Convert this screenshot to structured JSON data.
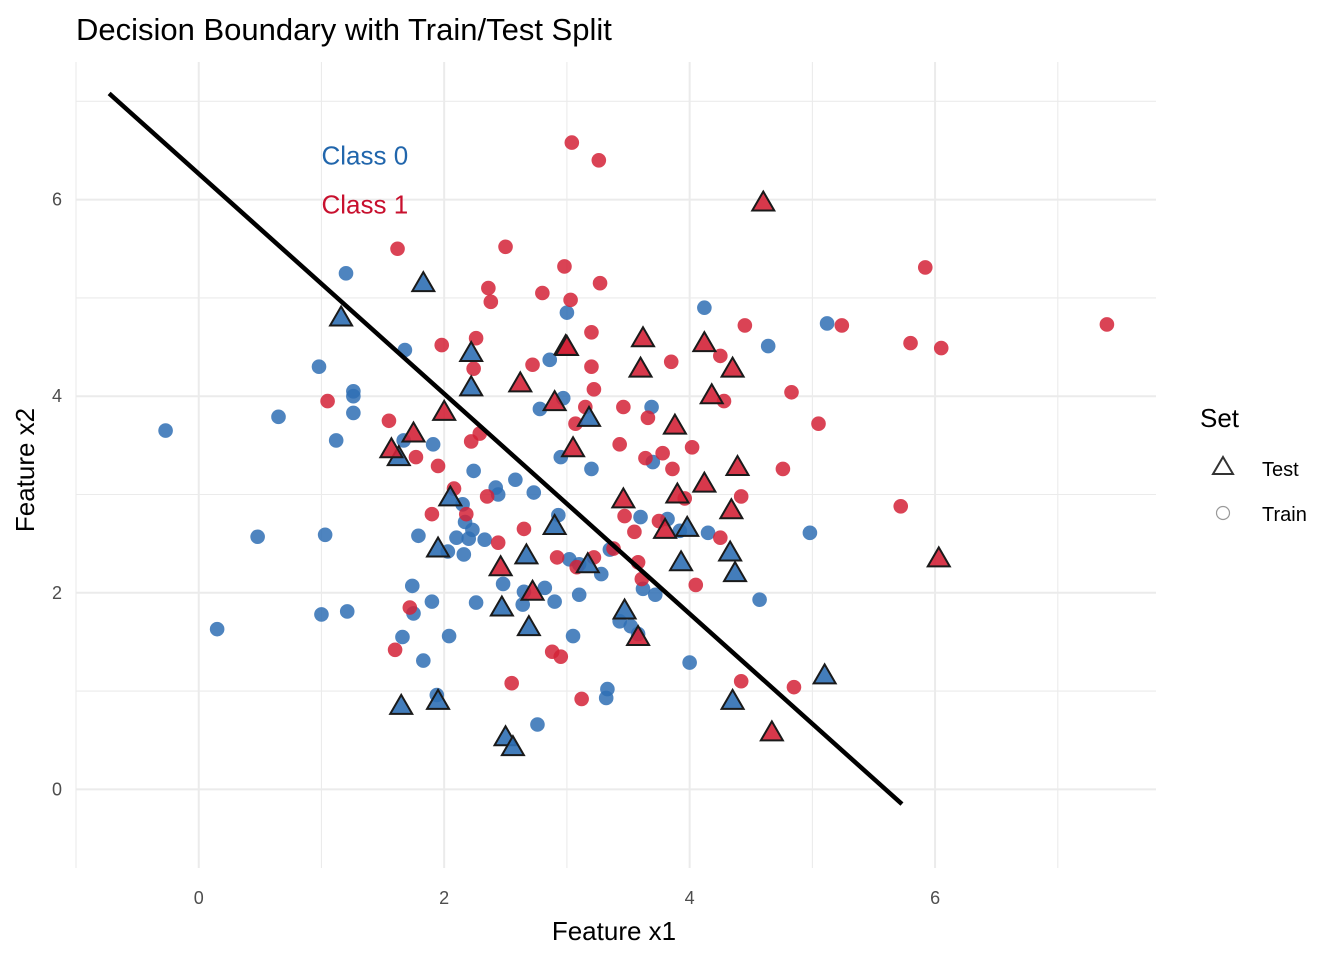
{
  "chart_data": {
    "type": "scatter",
    "title": "Decision Boundary with Train/Test Split",
    "xlabel": "Feature x1",
    "ylabel": "Feature x2",
    "xlim": [
      -1.0,
      7.8
    ],
    "ylim": [
      -0.8,
      7.4
    ],
    "x_ticks": [
      0,
      2,
      4,
      6
    ],
    "y_ticks": [
      0,
      2,
      4,
      6
    ],
    "grid": true,
    "colors": {
      "class0": "#2f6fb4",
      "class1": "#d32237",
      "boundary": "#000000"
    },
    "annotations": [
      {
        "text": "Class 0",
        "x": 1.0,
        "y": 6.45,
        "color": "#2166ac"
      },
      {
        "text": "Class 1",
        "x": 1.0,
        "y": 5.95,
        "color": "#c8102e"
      }
    ],
    "boundary_line": {
      "x": [
        -0.73,
        5.73
      ],
      "y": [
        7.08,
        -0.15
      ]
    },
    "legend": {
      "title": "Set",
      "position": "right",
      "entries": [
        {
          "label": "Test",
          "shape": "triangle"
        },
        {
          "label": "Train",
          "shape": "circle"
        }
      ]
    },
    "series": [
      {
        "name": "Train",
        "shape": "circle",
        "class0": [
          [
            -0.27,
            3.65
          ],
          [
            0.15,
            1.63
          ],
          [
            0.48,
            2.57
          ],
          [
            0.65,
            3.79
          ],
          [
            0.98,
            4.3
          ],
          [
            1.0,
            1.78
          ],
          [
            1.03,
            2.59
          ],
          [
            1.12,
            3.55
          ],
          [
            1.2,
            5.25
          ],
          [
            1.21,
            1.81
          ],
          [
            1.26,
            4.05
          ],
          [
            1.26,
            4.0
          ],
          [
            1.26,
            3.83
          ],
          [
            1.66,
            1.55
          ],
          [
            1.68,
            4.47
          ],
          [
            1.67,
            3.55
          ],
          [
            1.74,
            2.07
          ],
          [
            1.75,
            1.79
          ],
          [
            1.79,
            2.58
          ],
          [
            1.83,
            1.31
          ],
          [
            1.9,
            1.91
          ],
          [
            1.91,
            3.51
          ],
          [
            1.94,
            0.96
          ],
          [
            2.03,
            2.42
          ],
          [
            2.04,
            1.56
          ],
          [
            2.1,
            2.56
          ],
          [
            2.15,
            2.9
          ],
          [
            2.16,
            2.39
          ],
          [
            2.17,
            2.72
          ],
          [
            2.2,
            2.55
          ],
          [
            2.23,
            2.64
          ],
          [
            2.24,
            3.24
          ],
          [
            2.26,
            1.9
          ],
          [
            2.33,
            2.54
          ],
          [
            2.42,
            3.07
          ],
          [
            2.44,
            3.0
          ],
          [
            2.48,
            2.09
          ],
          [
            2.58,
            3.15
          ],
          [
            2.64,
            1.88
          ],
          [
            2.65,
            2.01
          ],
          [
            2.73,
            3.02
          ],
          [
            2.76,
            0.66
          ],
          [
            2.78,
            3.87
          ],
          [
            2.82,
            2.05
          ],
          [
            2.86,
            4.37
          ],
          [
            2.9,
            1.91
          ],
          [
            2.93,
            2.79
          ],
          [
            2.95,
            3.38
          ],
          [
            2.97,
            3.98
          ],
          [
            3.0,
            4.85
          ],
          [
            3.02,
            2.34
          ],
          [
            3.05,
            1.56
          ],
          [
            3.1,
            1.98
          ],
          [
            3.1,
            2.29
          ],
          [
            3.2,
            3.26
          ],
          [
            3.28,
            2.19
          ],
          [
            3.33,
            1.02
          ],
          [
            3.32,
            0.93
          ],
          [
            3.35,
            2.44
          ],
          [
            3.43,
            1.71
          ],
          [
            3.52,
            1.66
          ],
          [
            3.58,
            1.58
          ],
          [
            3.6,
            2.77
          ],
          [
            3.62,
            2.04
          ],
          [
            3.69,
            3.89
          ],
          [
            3.7,
            3.33
          ],
          [
            3.72,
            1.98
          ],
          [
            3.82,
            2.75
          ],
          [
            3.92,
            2.63
          ],
          [
            4.0,
            1.29
          ],
          [
            4.12,
            4.9
          ],
          [
            4.15,
            2.61
          ],
          [
            4.57,
            1.93
          ],
          [
            4.64,
            4.51
          ],
          [
            4.98,
            2.61
          ],
          [
            5.12,
            4.74
          ]
        ],
        "class1": [
          [
            1.05,
            3.95
          ],
          [
            1.55,
            3.75
          ],
          [
            1.6,
            1.42
          ],
          [
            1.62,
            5.5
          ],
          [
            1.72,
            1.85
          ],
          [
            1.77,
            3.38
          ],
          [
            1.9,
            2.8
          ],
          [
            1.95,
            3.29
          ],
          [
            1.98,
            4.52
          ],
          [
            2.08,
            3.06
          ],
          [
            2.18,
            2.8
          ],
          [
            2.22,
            3.54
          ],
          [
            2.24,
            4.28
          ],
          [
            2.26,
            4.59
          ],
          [
            2.29,
            3.62
          ],
          [
            2.35,
            2.98
          ],
          [
            2.36,
            5.1
          ],
          [
            2.38,
            4.96
          ],
          [
            2.44,
            2.51
          ],
          [
            2.5,
            5.52
          ],
          [
            2.55,
            1.08
          ],
          [
            2.65,
            2.65
          ],
          [
            2.72,
            4.32
          ],
          [
            2.8,
            5.05
          ],
          [
            2.88,
            1.4
          ],
          [
            2.92,
            2.36
          ],
          [
            2.95,
            1.35
          ],
          [
            2.98,
            5.32
          ],
          [
            3.03,
            4.98
          ],
          [
            3.04,
            6.58
          ],
          [
            3.07,
            3.72
          ],
          [
            3.08,
            2.26
          ],
          [
            3.12,
            0.92
          ],
          [
            3.15,
            3.89
          ],
          [
            3.2,
            4.65
          ],
          [
            3.2,
            4.3
          ],
          [
            3.22,
            4.07
          ],
          [
            3.22,
            2.36
          ],
          [
            3.26,
            6.4
          ],
          [
            3.27,
            5.15
          ],
          [
            3.38,
            2.45
          ],
          [
            3.43,
            3.51
          ],
          [
            3.46,
            3.89
          ],
          [
            3.47,
            2.78
          ],
          [
            3.55,
            2.62
          ],
          [
            3.58,
            2.31
          ],
          [
            3.61,
            2.14
          ],
          [
            3.64,
            3.37
          ],
          [
            3.66,
            3.78
          ],
          [
            3.75,
            2.73
          ],
          [
            3.78,
            3.42
          ],
          [
            3.85,
            4.35
          ],
          [
            3.86,
            3.26
          ],
          [
            3.96,
            2.96
          ],
          [
            4.02,
            3.48
          ],
          [
            4.05,
            2.08
          ],
          [
            4.25,
            2.56
          ],
          [
            4.25,
            4.41
          ],
          [
            4.28,
            3.95
          ],
          [
            4.42,
            2.98
          ],
          [
            4.42,
            1.1
          ],
          [
            4.45,
            4.72
          ],
          [
            4.76,
            3.26
          ],
          [
            4.83,
            4.04
          ],
          [
            4.85,
            1.04
          ],
          [
            5.05,
            3.72
          ],
          [
            5.24,
            4.72
          ],
          [
            5.72,
            2.88
          ],
          [
            5.8,
            4.54
          ],
          [
            5.92,
            5.31
          ],
          [
            6.05,
            4.49
          ],
          [
            7.4,
            4.73
          ]
        ]
      },
      {
        "name": "Test",
        "shape": "triangle",
        "class0": [
          [
            1.16,
            4.8
          ],
          [
            1.83,
            5.15
          ],
          [
            1.63,
            3.38
          ],
          [
            1.65,
            0.85
          ],
          [
            1.95,
            2.45
          ],
          [
            1.95,
            0.9
          ],
          [
            2.05,
            2.97
          ],
          [
            2.22,
            4.44
          ],
          [
            2.22,
            4.09
          ],
          [
            2.47,
            1.85
          ],
          [
            2.5,
            0.53
          ],
          [
            2.56,
            0.43
          ],
          [
            2.67,
            2.38
          ],
          [
            2.69,
            1.65
          ],
          [
            2.9,
            2.68
          ],
          [
            3.18,
            3.78
          ],
          [
            3.17,
            2.29
          ],
          [
            3.47,
            1.82
          ],
          [
            3.93,
            2.31
          ],
          [
            3.98,
            2.66
          ],
          [
            4.33,
            2.41
          ],
          [
            4.35,
            0.9
          ],
          [
            4.37,
            2.2
          ],
          [
            5.1,
            1.16
          ]
        ],
        "class1": [
          [
            1.57,
            3.46
          ],
          [
            1.75,
            3.62
          ],
          [
            2.0,
            3.84
          ],
          [
            2.46,
            2.26
          ],
          [
            2.62,
            4.13
          ],
          [
            2.72,
            2.01
          ],
          [
            2.9,
            3.94
          ],
          [
            2.99,
            4.51
          ],
          [
            3.0,
            4.5
          ],
          [
            3.05,
            3.47
          ],
          [
            3.46,
            2.95
          ],
          [
            3.58,
            1.55
          ],
          [
            3.6,
            4.28
          ],
          [
            3.62,
            4.59
          ],
          [
            3.8,
            2.64
          ],
          [
            3.88,
            3.7
          ],
          [
            3.9,
            3.0
          ],
          [
            4.12,
            3.11
          ],
          [
            4.12,
            4.54
          ],
          [
            4.18,
            4.01
          ],
          [
            4.34,
            2.84
          ],
          [
            4.35,
            4.28
          ],
          [
            4.39,
            3.28
          ],
          [
            4.6,
            5.97
          ],
          [
            4.67,
            0.58
          ],
          [
            6.03,
            2.35
          ]
        ]
      }
    ]
  }
}
